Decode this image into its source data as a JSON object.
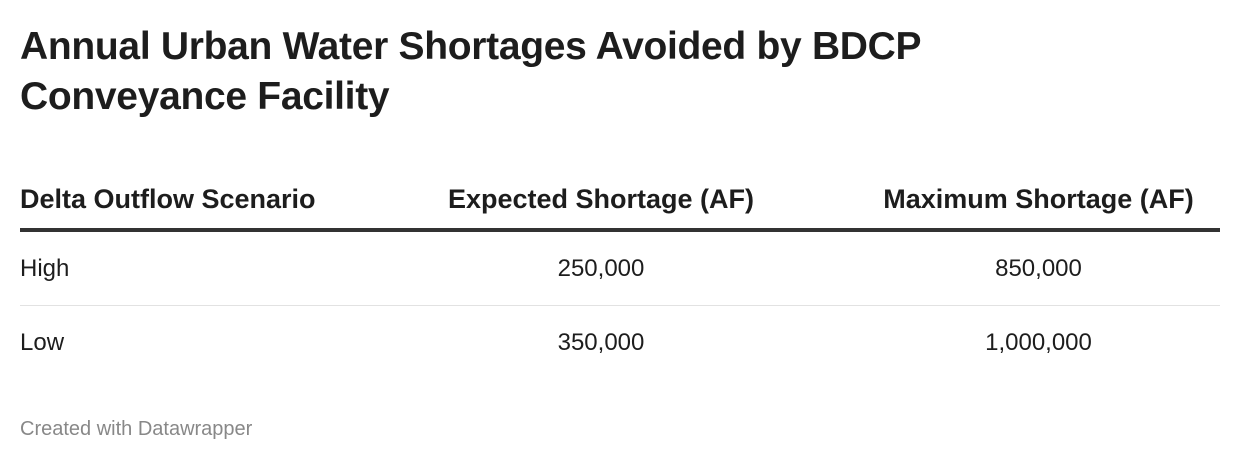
{
  "header": {
    "title": "Annual Urban Water Shortages Avoided by BDCP Conveyance Facility"
  },
  "table": {
    "columns": [
      "Delta Outflow Scenario",
      "Expected Shortage (AF)",
      "Maximum Shortage (AF)"
    ],
    "rows": [
      [
        "High",
        "250,000",
        "850,000"
      ],
      [
        "Low",
        "350,000",
        "1,000,000"
      ]
    ]
  },
  "footer": {
    "credit": "Created with Datawrapper"
  }
}
